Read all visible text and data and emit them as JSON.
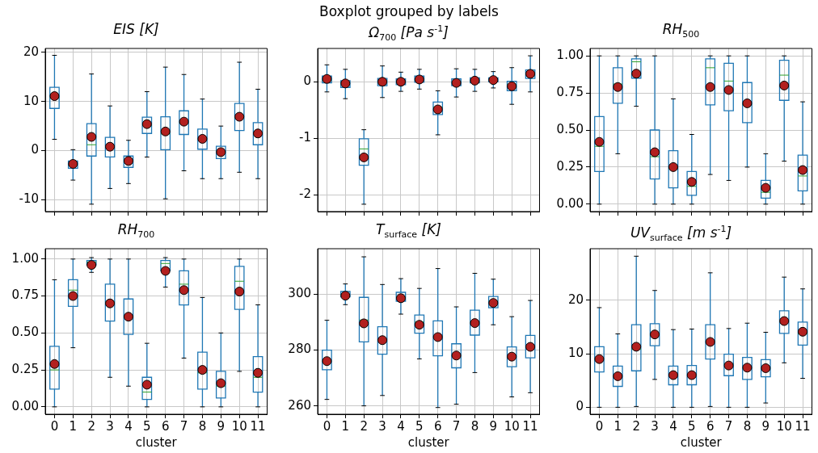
{
  "chart_data": [
    {
      "type": "other",
      "title": "Boxplot grouped by labels"
    },
    {
      "type": "box",
      "title": "EIS [K]",
      "categories": [
        "0",
        "1",
        "2",
        "3",
        "4",
        "5",
        "6",
        "7",
        "8",
        "9",
        "10",
        "11"
      ],
      "ylim": [
        -12.4,
        20.8
      ],
      "yticks": [
        -10,
        0,
        10,
        20
      ],
      "grid": true,
      "tick_labels": "y",
      "series": [
        {
          "color": "#1f77b4",
          "boxes": [
            {
              "low": 2.3,
              "q1": 8.6,
              "median": 10.7,
              "q3": 12.9,
              "high": 19.4,
              "mean": 11.1
            },
            {
              "low": -6.0,
              "q1": -3.6,
              "median": -2.9,
              "q3": -2.1,
              "high": 0.2,
              "mean": -2.7
            },
            {
              "low": -10.9,
              "q1": -1.1,
              "median": 1.2,
              "q3": 5.5,
              "high": 15.6,
              "mean": 2.8
            },
            {
              "low": -7.7,
              "q1": -1.3,
              "median": 0.8,
              "q3": 2.7,
              "high": 9.1,
              "mean": 0.8
            },
            {
              "low": -6.7,
              "q1": -3.4,
              "median": -2.1,
              "q3": -1.1,
              "high": 2.1,
              "mean": -2.1
            },
            {
              "low": -1.3,
              "q1": 3.5,
              "median": 5.1,
              "q3": 6.8,
              "high": 12.0,
              "mean": 5.4
            },
            {
              "low": -9.8,
              "q1": 0.2,
              "median": 3.4,
              "q3": 6.9,
              "high": 17.0,
              "mean": 3.9
            },
            {
              "low": -4.1,
              "q1": 3.3,
              "median": 5.7,
              "q3": 8.1,
              "high": 15.5,
              "mean": 5.9
            },
            {
              "low": -5.7,
              "q1": 0.3,
              "median": 2.4,
              "q3": 4.4,
              "high": 10.5,
              "mean": 2.4
            },
            {
              "low": -5.7,
              "q1": -1.6,
              "median": -0.2,
              "q3": 0.9,
              "high": 5.0,
              "mean": -0.3
            },
            {
              "low": -4.4,
              "q1": 4.1,
              "median": 6.7,
              "q3": 9.6,
              "high": 18.0,
              "mean": 6.9
            },
            {
              "low": -5.7,
              "q1": 1.2,
              "median": 3.5,
              "q3": 5.7,
              "high": 12.5,
              "mean": 3.5
            }
          ]
        }
      ]
    },
    {
      "type": "box",
      "title": "Ω$_{700}$ [Pa s$^{-1}$]",
      "categories": [
        "0",
        "1",
        "2",
        "3",
        "4",
        "5",
        "6",
        "7",
        "8",
        "9",
        "10",
        "11"
      ],
      "ylim": [
        -2.3,
        0.59
      ],
      "yticks": [
        -2,
        -1,
        0
      ],
      "grid": true,
      "tick_labels": "y",
      "series": [
        {
          "color": "#1f77b4",
          "boxes": [
            {
              "low": -0.18,
              "q1": -0.02,
              "median": 0.03,
              "q3": 0.1,
              "high": 0.3,
              "mean": 0.05
            },
            {
              "low": -0.3,
              "q1": -0.1,
              "median": -0.02,
              "q3": 0.02,
              "high": 0.22,
              "mean": -0.03
            },
            {
              "low": -2.17,
              "q1": -1.48,
              "median": -1.19,
              "q3": -1.01,
              "high": -0.85,
              "mean": -1.34
            },
            {
              "low": -0.28,
              "q1": -0.07,
              "median": 0.0,
              "q3": 0.06,
              "high": 0.28,
              "mean": 0.0
            },
            {
              "low": -0.17,
              "q1": -0.05,
              "median": 0.0,
              "q3": 0.05,
              "high": 0.17,
              "mean": 0.0
            },
            {
              "low": -0.13,
              "q1": -0.01,
              "median": 0.04,
              "q3": 0.1,
              "high": 0.22,
              "mean": 0.04
            },
            {
              "low": -0.94,
              "q1": -0.58,
              "median": -0.45,
              "q3": -0.36,
              "high": -0.16,
              "mean": -0.49
            },
            {
              "low": -0.27,
              "q1": -0.07,
              "median": -0.01,
              "q3": 0.05,
              "high": 0.23,
              "mean": -0.02
            },
            {
              "low": -0.17,
              "q1": -0.02,
              "median": 0.02,
              "q3": 0.07,
              "high": 0.22,
              "mean": 0.02
            },
            {
              "low": -0.11,
              "q1": 0.0,
              "median": 0.03,
              "q3": 0.07,
              "high": 0.18,
              "mean": 0.03
            },
            {
              "low": -0.4,
              "q1": -0.16,
              "median": -0.05,
              "q3": 0.01,
              "high": 0.25,
              "mean": -0.08
            },
            {
              "low": -0.18,
              "q1": 0.06,
              "median": 0.14,
              "q3": 0.21,
              "high": 0.46,
              "mean": 0.14
            }
          ]
        }
      ]
    },
    {
      "type": "box",
      "title": "RH$_{500}$",
      "categories": [
        "0",
        "1",
        "2",
        "3",
        "4",
        "5",
        "6",
        "7",
        "8",
        "9",
        "10",
        "11"
      ],
      "ylim": [
        -0.05,
        1.05
      ],
      "yticks": [
        {
          "value": 0,
          "label": "0.00"
        },
        {
          "value": 0.25,
          "label": "0.25"
        },
        {
          "value": 0.5,
          "label": "0.50"
        },
        {
          "value": 0.75,
          "label": "0.75"
        },
        {
          "value": 1,
          "label": "1.00"
        }
      ],
      "grid": true,
      "tick_labels": "y",
      "series": [
        {
          "color": "#1f77b4",
          "boxes": [
            {
              "low": 0,
              "q1": 0.22,
              "median": 0.39,
              "q3": 0.59,
              "high": 1.0,
              "mean": 0.42
            },
            {
              "low": 0.34,
              "q1": 0.68,
              "median": 0.81,
              "q3": 0.92,
              "high": 1.0,
              "mean": 0.79
            },
            {
              "low": 0.66,
              "q1": 0.85,
              "median": 0.96,
              "q3": 0.98,
              "high": 1.0,
              "mean": 0.88
            },
            {
              "low": 0,
              "q1": 0.17,
              "median": 0.32,
              "q3": 0.5,
              "high": 1.0,
              "mean": 0.35
            },
            {
              "low": 0,
              "q1": 0.11,
              "median": 0.24,
              "q3": 0.36,
              "high": 0.71,
              "mean": 0.25
            },
            {
              "low": 0,
              "q1": 0.06,
              "median": 0.12,
              "q3": 0.22,
              "high": 0.47,
              "mean": 0.15
            },
            {
              "low": 0.2,
              "q1": 0.67,
              "median": 0.92,
              "q3": 0.98,
              "high": 1.0,
              "mean": 0.79
            },
            {
              "low": 0.16,
              "q1": 0.63,
              "median": 0.83,
              "q3": 0.95,
              "high": 1.0,
              "mean": 0.77
            },
            {
              "low": 0.25,
              "q1": 0.55,
              "median": 0.67,
              "q3": 0.82,
              "high": 1.0,
              "mean": 0.68
            },
            {
              "low": 0,
              "q1": 0.04,
              "median": 0.08,
              "q3": 0.16,
              "high": 0.34,
              "mean": 0.11
            },
            {
              "low": 0.29,
              "q1": 0.7,
              "median": 0.87,
              "q3": 0.97,
              "high": 1.0,
              "mean": 0.8
            },
            {
              "low": 0,
              "q1": 0.09,
              "median": 0.19,
              "q3": 0.33,
              "high": 0.69,
              "mean": 0.23
            }
          ]
        }
      ]
    },
    {
      "type": "box",
      "title": "RH$_{700}$",
      "xlabel": "cluster",
      "categories": [
        "0",
        "1",
        "2",
        "3",
        "4",
        "5",
        "6",
        "7",
        "8",
        "9",
        "10",
        "11"
      ],
      "ylim": [
        -0.05,
        1.07
      ],
      "yticks": [
        {
          "value": 0,
          "label": "0.00"
        },
        {
          "value": 0.25,
          "label": "0.25"
        },
        {
          "value": 0.5,
          "label": "0.50"
        },
        {
          "value": 0.75,
          "label": "0.75"
        },
        {
          "value": 1,
          "label": "1.00"
        }
      ],
      "grid": true,
      "series": [
        {
          "color": "#1f77b4",
          "boxes": [
            {
              "low": 0,
              "q1": 0.12,
              "median": 0.25,
              "q3": 0.41,
              "high": 0.86,
              "mean": 0.29
            },
            {
              "low": 0.4,
              "q1": 0.68,
              "median": 0.79,
              "q3": 0.86,
              "high": 1.0,
              "mean": 0.75
            },
            {
              "low": 0.91,
              "q1": 0.96,
              "median": 0.98,
              "q3": 0.99,
              "high": 1.01,
              "mean": 0.96
            },
            {
              "low": 0.2,
              "q1": 0.58,
              "median": 0.71,
              "q3": 0.83,
              "high": 1.0,
              "mean": 0.7
            },
            {
              "low": 0.14,
              "q1": 0.49,
              "median": 0.61,
              "q3": 0.73,
              "high": 1.0,
              "mean": 0.61
            },
            {
              "low": 0,
              "q1": 0.05,
              "median": 0.1,
              "q3": 0.2,
              "high": 0.43,
              "mean": 0.15
            },
            {
              "low": 0.81,
              "q1": 0.92,
              "median": 0.97,
              "q3": 0.99,
              "high": 1.01,
              "mean": 0.92
            },
            {
              "low": 0.33,
              "q1": 0.69,
              "median": 0.83,
              "q3": 0.92,
              "high": 1.0,
              "mean": 0.79
            },
            {
              "low": 0,
              "q1": 0.12,
              "median": 0.23,
              "q3": 0.37,
              "high": 0.74,
              "mean": 0.25
            },
            {
              "low": 0,
              "q1": 0.06,
              "median": 0.14,
              "q3": 0.24,
              "high": 0.5,
              "mean": 0.16
            },
            {
              "low": 0.24,
              "q1": 0.66,
              "median": 0.85,
              "q3": 0.95,
              "high": 1.0,
              "mean": 0.78
            },
            {
              "low": 0,
              "q1": 0.1,
              "median": 0.2,
              "q3": 0.34,
              "high": 0.69,
              "mean": 0.23
            }
          ]
        }
      ]
    },
    {
      "type": "box",
      "title": "T$_{surface}$ [K]",
      "xlabel": "cluster",
      "categories": [
        "0",
        "1",
        "2",
        "3",
        "4",
        "5",
        "6",
        "7",
        "8",
        "9",
        "10",
        "11"
      ],
      "ylim": [
        257,
        316.2
      ],
      "yticks": [
        260,
        280,
        300
      ],
      "grid": true,
      "series": [
        {
          "color": "#1f77b4",
          "boxes": [
            {
              "low": 262.3,
              "q1": 272.9,
              "median": 276,
              "q3": 279.9,
              "high": 290.6,
              "mean": 276
            },
            {
              "low": 296.2,
              "q1": 299,
              "median": 299.8,
              "q3": 300.9,
              "high": 303.6,
              "mean": 299.4
            },
            {
              "low": 260,
              "q1": 282.9,
              "median": 290.7,
              "q3": 298.8,
              "high": 313.3,
              "mean": 289.5
            },
            {
              "low": 263.7,
              "q1": 278.5,
              "median": 283.7,
              "q3": 288.3,
              "high": 303.4,
              "mean": 283.5
            },
            {
              "low": 292.8,
              "q1": 297.4,
              "median": 299,
              "q3": 300.6,
              "high": 305.5,
              "mean": 298.5
            },
            {
              "low": 276.8,
              "q1": 286,
              "median": 290,
              "q3": 292.5,
              "high": 302,
              "mean": 289
            },
            {
              "low": 259.4,
              "q1": 277.9,
              "median": 284.9,
              "q3": 290.4,
              "high": 309.1,
              "mean": 284.6
            },
            {
              "low": 260.6,
              "q1": 273.6,
              "median": 277.9,
              "q3": 282.2,
              "high": 295.4,
              "mean": 278
            },
            {
              "low": 271.9,
              "q1": 285.3,
              "median": 290.1,
              "q3": 294.2,
              "high": 307.4,
              "mean": 289.6
            },
            {
              "low": 289,
              "q1": 295.1,
              "median": 297.4,
              "q3": 299.1,
              "high": 305.3,
              "mean": 296.8
            },
            {
              "low": 263.2,
              "q1": 274,
              "median": 277.3,
              "q3": 281.1,
              "high": 291.9,
              "mean": 277.6
            },
            {
              "low": 264.7,
              "q1": 277.2,
              "median": 281.3,
              "q3": 285.2,
              "high": 297.7,
              "mean": 281.1
            }
          ]
        }
      ]
    },
    {
      "type": "box",
      "title": "UV$_{surface}$ [m s$^{-1}$]",
      "xlabel": "cluster",
      "categories": [
        "0",
        "1",
        "2",
        "3",
        "4",
        "5",
        "6",
        "7",
        "8",
        "9",
        "10",
        "11"
      ],
      "ylim": [
        -1.3,
        29.6
      ],
      "yticks": [
        0,
        10,
        20
      ],
      "grid": true,
      "series": [
        {
          "color": "#1f77b4",
          "boxes": [
            {
              "low": 0,
              "q1": 6.6,
              "median": 9.1,
              "q3": 11.3,
              "high": 18.6,
              "mean": 9.0
            },
            {
              "low": 0,
              "q1": 3.9,
              "median": 5.8,
              "q3": 7.7,
              "high": 13.7,
              "mean": 5.8
            },
            {
              "low": 0.15,
              "q1": 6.8,
              "median": 10.8,
              "q3": 15.4,
              "high": 28.2,
              "mean": 11.3
            },
            {
              "low": 5.2,
              "q1": 11.5,
              "median": 13.5,
              "q3": 15.6,
              "high": 21.8,
              "mean": 13.6
            },
            {
              "low": 0,
              "q1": 4.2,
              "median": 6.1,
              "q3": 7.7,
              "high": 14.5,
              "mean": 6.0
            },
            {
              "low": 0,
              "q1": 4.2,
              "median": 6.1,
              "q3": 7.8,
              "high": 14.6,
              "mean": 6.0
            },
            {
              "low": 0.15,
              "q1": 9.0,
              "median": 12.3,
              "q3": 15.4,
              "high": 25.1,
              "mean": 12.2
            },
            {
              "low": 0,
              "q1": 5.9,
              "median": 8.1,
              "q3": 9.9,
              "high": 14.7,
              "mean": 7.8
            },
            {
              "low": 0,
              "q1": 5.2,
              "median": 7.4,
              "q3": 9.3,
              "high": 15.7,
              "mean": 7.4
            },
            {
              "low": 0.8,
              "q1": 5.7,
              "median": 7.4,
              "q3": 8.9,
              "high": 14.0,
              "mean": 7.3
            },
            {
              "low": 8.3,
              "q1": 13.8,
              "median": 16.0,
              "q3": 18.0,
              "high": 24.3,
              "mean": 16.1
            },
            {
              "low": 5.4,
              "q1": 11.6,
              "median": 13.7,
              "q3": 15.9,
              "high": 22.1,
              "mean": 14.1
            }
          ]
        }
      ]
    }
  ]
}
